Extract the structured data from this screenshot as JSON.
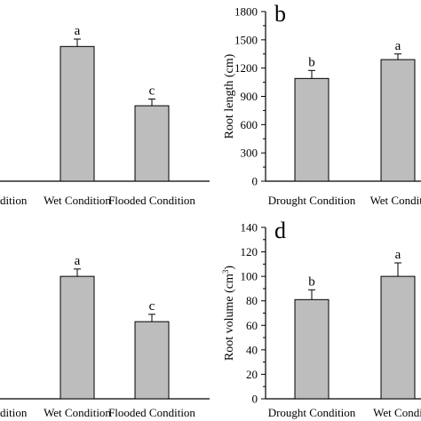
{
  "chart_data": [
    {
      "panel": "",
      "type": "bar",
      "categories": [
        "Drought Condition",
        "Wet Condition",
        "Flooded Condition"
      ],
      "category_labels_shown": [
        "dition",
        "Wet Condition",
        "Flooded Condition"
      ],
      "values": [
        0,
        1000,
        560
      ],
      "errors": [
        0,
        55,
        50
      ],
      "significance": [
        "",
        "a",
        "c"
      ],
      "ylim": [
        0,
        1200
      ],
      "bar_color": "#bdbdbd"
    },
    {
      "panel": "b",
      "type": "bar",
      "categories": [
        "Drought Condition",
        "Wet Condition"
      ],
      "category_labels_shown": [
        "Drought Condition",
        "Wet Conditi"
      ],
      "values": [
        1090,
        1290
      ],
      "errors": [
        85,
        60
      ],
      "significance": [
        "b",
        "a"
      ],
      "ylabel": "Root length (cm)",
      "ylim": [
        0,
        1800
      ],
      "yticks": [
        0,
        300,
        600,
        900,
        1200,
        1500,
        1800
      ],
      "bar_color": "#bdbdbd"
    },
    {
      "panel": "",
      "type": "bar",
      "categories": [
        "Drought Condition",
        "Wet Condition",
        "Flooded Condition"
      ],
      "category_labels_shown": [
        "dition",
        "Wet Condition",
        "Flooded Condition"
      ],
      "values": [
        0,
        100,
        63
      ],
      "errors": [
        0,
        6,
        6
      ],
      "significance": [
        "",
        "a",
        "c"
      ],
      "ylim": [
        0,
        140
      ],
      "bar_color": "#bdbdbd"
    },
    {
      "panel": "d",
      "type": "bar",
      "categories": [
        "Drought Condition",
        "Wet Condition"
      ],
      "category_labels_shown": [
        "Drought Condition",
        "Wet Condi"
      ],
      "values": [
        81,
        100
      ],
      "errors": [
        8,
        11
      ],
      "significance": [
        "b",
        "a"
      ],
      "ylabel": "Root volume (cm",
      "ylabel_sup": "3",
      "ylabel_end": ")",
      "ylim": [
        0,
        140
      ],
      "yticks": [
        0,
        20,
        40,
        60,
        80,
        100,
        120,
        140
      ],
      "bar_color": "#bdbdbd"
    }
  ]
}
